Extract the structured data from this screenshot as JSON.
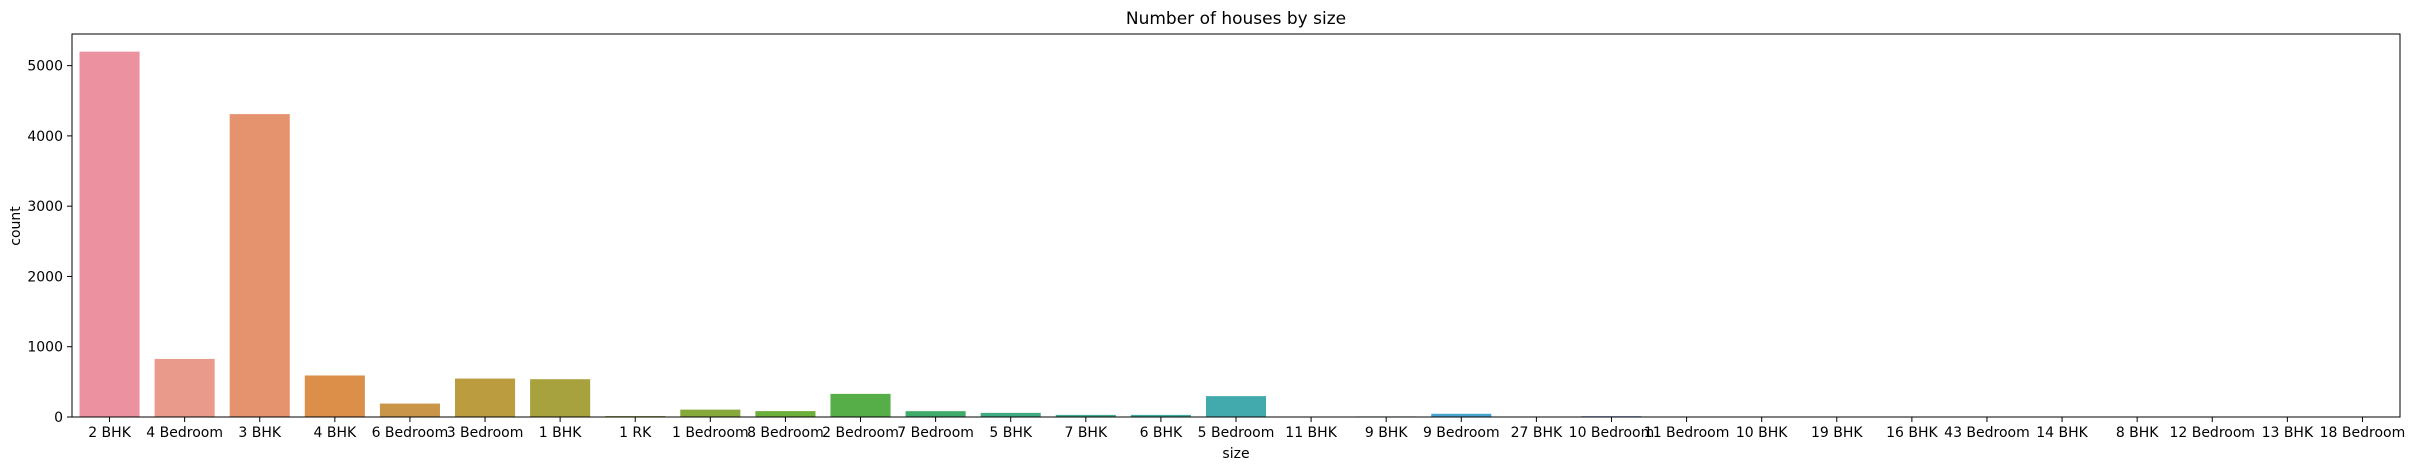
{
  "chart_data": {
    "type": "bar",
    "title": "Number of houses by size",
    "xlabel": "size",
    "ylabel": "count",
    "ylim": [
      0,
      5450
    ],
    "yticks": [
      0,
      1000,
      2000,
      3000,
      4000,
      5000
    ],
    "grid": false,
    "categories": [
      "2 BHK",
      "4 Bedroom",
      "3 BHK",
      "4 BHK",
      "6 Bedroom",
      "3 Bedroom",
      "1 BHK",
      "1 RK",
      "1 Bedroom",
      "8 Bedroom",
      "2 Bedroom",
      "7 Bedroom",
      "5 BHK",
      "7 BHK",
      "6 BHK",
      "5 Bedroom",
      "11 BHK",
      "9 BHK",
      "9 Bedroom",
      "27 BHK",
      "10 Bedroom",
      "11 Bedroom",
      "10 BHK",
      "19 BHK",
      "16 BHK",
      "43 Bedroom",
      "14 BHK",
      "8 BHK",
      "12 Bedroom",
      "13 BHK",
      "18 Bedroom"
    ],
    "values": [
      5199,
      826,
      4310,
      591,
      191,
      547,
      538,
      13,
      105,
      84,
      329,
      83,
      59,
      30,
      30,
      297,
      2,
      8,
      46,
      1,
      12,
      2,
      2,
      1,
      1,
      1,
      1,
      5,
      1,
      1,
      1
    ],
    "colors": [
      "#eb91a0",
      "#ea9a8a",
      "#e5926f",
      "#dc8f48",
      "#c99548",
      "#bb9d40",
      "#a7a23e",
      "#98a53d",
      "#86a93b",
      "#6daf3b",
      "#55ae48",
      "#40ac6a",
      "#3fac81",
      "#3fac91",
      "#40ab9f",
      "#42aaac",
      "#43a8b9",
      "#45a6c5",
      "#48a4d2",
      "#5aa1dc",
      "#7b9ce3",
      "#9a97ea",
      "#b18ee9",
      "#c68aea",
      "#d884ea",
      "#e57ee1",
      "#e97fd3",
      "#ea82c4",
      "#ec86b6",
      "#ed89a9",
      "#ee8c9c"
    ]
  }
}
